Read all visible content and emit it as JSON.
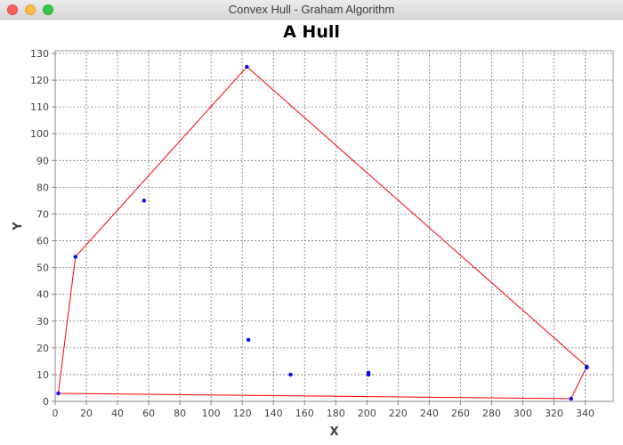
{
  "window": {
    "title": "Convex Hull - Graham Algorithm"
  },
  "chart_data": {
    "type": "scatter",
    "title": "A Hull",
    "xlabel": "X",
    "ylabel": "Y",
    "xlim": [
      0,
      358
    ],
    "ylim": [
      0,
      131
    ],
    "xticks": [
      0,
      20,
      40,
      60,
      80,
      100,
      120,
      140,
      160,
      180,
      200,
      220,
      240,
      260,
      280,
      300,
      320,
      340
    ],
    "yticks": [
      0,
      10,
      20,
      30,
      40,
      50,
      60,
      70,
      80,
      90,
      100,
      110,
      120,
      130
    ],
    "grid": true,
    "points_color": "#0000ff",
    "hull_color": "#ff0000",
    "points": [
      {
        "x": 2,
        "y": 3
      },
      {
        "x": 13,
        "y": 54
      },
      {
        "x": 57,
        "y": 75
      },
      {
        "x": 123,
        "y": 125
      },
      {
        "x": 124,
        "y": 23
      },
      {
        "x": 151,
        "y": 10
      },
      {
        "x": 201,
        "y": 10
      },
      {
        "x": 201,
        "y": 10.7
      },
      {
        "x": 331,
        "y": 1
      },
      {
        "x": 341,
        "y": 13
      },
      {
        "x": 341,
        "y": 12.6
      }
    ],
    "hull": [
      {
        "x": 2,
        "y": 3
      },
      {
        "x": 13,
        "y": 54
      },
      {
        "x": 123,
        "y": 125
      },
      {
        "x": 341,
        "y": 13
      },
      {
        "x": 331,
        "y": 1
      },
      {
        "x": 2,
        "y": 3
      }
    ]
  }
}
